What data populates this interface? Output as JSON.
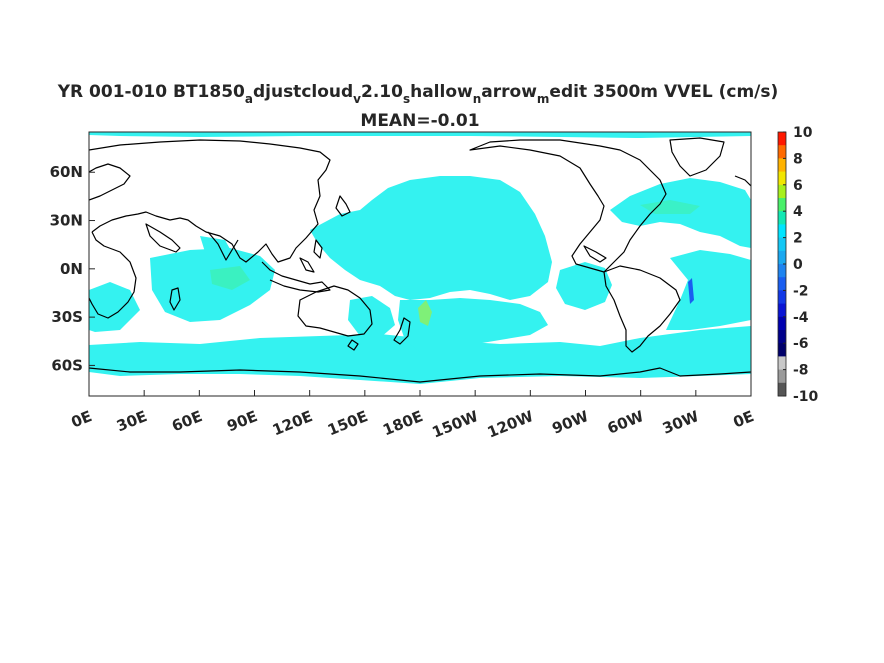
{
  "chart_data": {
    "type": "heatmap",
    "title": {
      "main_a": "YR 001-010 BT1850",
      "sub_a": "a",
      "main_b": "djustcloud",
      "sub_b": "v",
      "main_c": "2.10",
      "sub_c": "s",
      "main_d": "hallow",
      "sub_d": "n",
      "main_e": "arrow",
      "sub_e": "m",
      "main_f": "edit 3500m VVEL (cm/s)"
    },
    "subtitle": "MEAN=-0.01",
    "x_ticks": [
      "0E",
      "30E",
      "60E",
      "90E",
      "120E",
      "150E",
      "180E",
      "150W",
      "120W",
      "90W",
      "60W",
      "30W",
      "0E"
    ],
    "x_range_deg_east": [
      0,
      360
    ],
    "y_ticks": [
      "60N",
      "30N",
      "0N",
      "30S",
      "60S"
    ],
    "y_tick_values": [
      60,
      30,
      0,
      -30,
      -60
    ],
    "y_range_deg": [
      -79,
      85
    ],
    "colorbar": {
      "ticks": [
        "10",
        "8",
        "6",
        "4",
        "2",
        "0",
        "-2",
        "-4",
        "-6",
        "-8",
        "-10"
      ],
      "range": [
        -10,
        10
      ],
      "colors": [
        "#ff1800",
        "#ff6a00",
        "#ffb300",
        "#f2e600",
        "#a8f01c",
        "#49f06a",
        "#12e8b4",
        "#00e5ff",
        "#14c8f5",
        "#1aa8f0",
        "#1e84f0",
        "#1a5ef0",
        "#1238e6",
        "#0a14d4",
        "#0000b0",
        "#00008a",
        "#00006a",
        "#c8c8c8",
        "#9a9a9a",
        "#555555"
      ]
    },
    "field_color_dominant": "#34f2f0",
    "land_color": "#ffffff",
    "coast_color": "#000000"
  }
}
